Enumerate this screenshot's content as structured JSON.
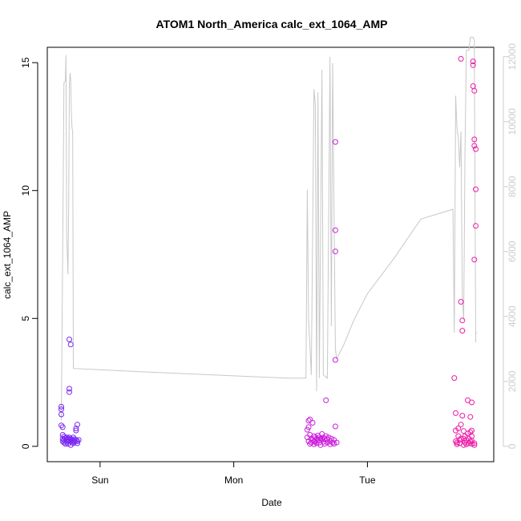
{
  "chart_data": {
    "type": "scatter",
    "title": "ATOM1 North_America calc_ext_1064_AMP",
    "xlabel": "Date",
    "ylabel": "calc_ext_1064_AMP",
    "x_unit": "days",
    "x_ticks": [
      {
        "value": 1.0,
        "label": "Sun"
      },
      {
        "value": 2.0,
        "label": "Mon"
      },
      {
        "value": 3.0,
        "label": "Tue"
      }
    ],
    "xlim": [
      0.605,
      3.945
    ],
    "ylim": [
      -0.6,
      15.6
    ],
    "y_ticks": [
      0,
      5,
      10,
      15
    ],
    "y2lim": [
      -472,
      12290
    ],
    "y2_ticks": [
      0,
      2000,
      4000,
      6000,
      8000,
      10000,
      12000
    ],
    "y2_color": "#cccccc",
    "line_color": "#c8c8c8",
    "series": [
      {
        "kind": "points",
        "color": "#7a28f2",
        "points": [
          [
            0.71,
            1.55
          ],
          [
            0.71,
            1.45
          ],
          [
            0.71,
            1.25
          ],
          [
            0.71,
            0.82
          ],
          [
            0.72,
            0.75
          ],
          [
            0.72,
            0.45
          ],
          [
            0.72,
            0.3
          ],
          [
            0.72,
            0.2
          ],
          [
            0.73,
            0.38
          ],
          [
            0.73,
            0.25
          ],
          [
            0.73,
            0.15
          ],
          [
            0.74,
            0.32
          ],
          [
            0.74,
            0.1
          ],
          [
            0.75,
            0.35
          ],
          [
            0.75,
            0.28
          ],
          [
            0.75,
            0.18
          ],
          [
            0.76,
            0.3
          ],
          [
            0.76,
            0.22
          ],
          [
            0.76,
            0.1
          ],
          [
            0.77,
            0.25
          ],
          [
            0.77,
            0.35
          ],
          [
            0.77,
            4.18
          ],
          [
            0.78,
            3.98
          ],
          [
            0.77,
            2.25
          ],
          [
            0.77,
            2.12
          ],
          [
            0.78,
            0.3
          ],
          [
            0.78,
            0.2
          ],
          [
            0.78,
            0.05
          ],
          [
            0.79,
            0.25
          ],
          [
            0.79,
            0.15
          ],
          [
            0.8,
            0.35
          ],
          [
            0.8,
            0.22
          ],
          [
            0.8,
            0.12
          ],
          [
            0.81,
            0.28
          ],
          [
            0.81,
            0.18
          ],
          [
            0.82,
            0.25
          ],
          [
            0.82,
            0.62
          ],
          [
            0.82,
            0.7
          ],
          [
            0.83,
            0.85
          ],
          [
            0.83,
            0.2
          ],
          [
            0.83,
            0.12
          ],
          [
            0.84,
            0.25
          ]
        ]
      },
      {
        "kind": "points",
        "color": "#cc1fdc",
        "points": [
          [
            2.55,
            0.65
          ],
          [
            2.55,
            0.35
          ],
          [
            2.56,
            1.0
          ],
          [
            2.56,
            0.75
          ],
          [
            2.56,
            0.2
          ],
          [
            2.57,
            1.05
          ],
          [
            2.57,
            0.45
          ],
          [
            2.57,
            0.1
          ],
          [
            2.58,
            0.3
          ],
          [
            2.58,
            0.15
          ],
          [
            2.59,
            0.92
          ],
          [
            2.59,
            0.25
          ],
          [
            2.6,
            0.4
          ],
          [
            2.6,
            0.2
          ],
          [
            2.6,
            0.08
          ],
          [
            2.61,
            0.35
          ],
          [
            2.61,
            0.18
          ],
          [
            2.62,
            0.3
          ],
          [
            2.62,
            0.12
          ],
          [
            2.63,
            0.42
          ],
          [
            2.63,
            0.25
          ],
          [
            2.64,
            0.35
          ],
          [
            2.64,
            0.15
          ],
          [
            2.65,
            0.3
          ],
          [
            2.65,
            0.05
          ],
          [
            2.66,
            0.48
          ],
          [
            2.66,
            0.28
          ],
          [
            2.67,
            0.35
          ],
          [
            2.67,
            0.18
          ],
          [
            2.68,
            0.3
          ],
          [
            2.68,
            0.1
          ],
          [
            2.69,
            1.8
          ],
          [
            2.69,
            0.4
          ],
          [
            2.7,
            0.28
          ],
          [
            2.7,
            0.15
          ],
          [
            2.71,
            0.35
          ],
          [
            2.72,
            0.2
          ],
          [
            2.72,
            0.08
          ],
          [
            2.73,
            0.3
          ],
          [
            2.74,
            0.15
          ],
          [
            2.75,
            0.25
          ],
          [
            2.75,
            0.1
          ],
          [
            2.76,
            11.9
          ],
          [
            2.76,
            8.45
          ],
          [
            2.76,
            7.62
          ],
          [
            2.76,
            3.38
          ],
          [
            2.76,
            0.78
          ],
          [
            2.77,
            0.15
          ]
        ]
      },
      {
        "kind": "points",
        "color": "#ee1aa6",
        "points": [
          [
            3.65,
            2.67
          ],
          [
            3.66,
            1.3
          ],
          [
            3.66,
            0.62
          ],
          [
            3.66,
            0.2
          ],
          [
            3.67,
            0.15
          ],
          [
            3.67,
            0.08
          ],
          [
            3.68,
            0.7
          ],
          [
            3.68,
            0.4
          ],
          [
            3.69,
            0.25
          ],
          [
            3.69,
            0.12
          ],
          [
            3.7,
            15.15
          ],
          [
            3.7,
            5.65
          ],
          [
            3.7,
            0.85
          ],
          [
            3.7,
            0.3
          ],
          [
            3.71,
            4.92
          ],
          [
            3.71,
            4.52
          ],
          [
            3.71,
            1.2
          ],
          [
            3.72,
            0.6
          ],
          [
            3.72,
            0.3
          ],
          [
            3.72,
            0.05
          ],
          [
            3.73,
            0.4
          ],
          [
            3.73,
            0.15
          ],
          [
            3.74,
            0.25
          ],
          [
            3.74,
            0.08
          ],
          [
            3.75,
            1.8
          ],
          [
            3.75,
            0.5
          ],
          [
            3.76,
            0.3
          ],
          [
            3.76,
            0.12
          ],
          [
            3.77,
            1.15
          ],
          [
            3.77,
            0.55
          ],
          [
            3.77,
            0.2
          ],
          [
            3.78,
            1.72
          ],
          [
            3.78,
            0.62
          ],
          [
            3.78,
            0.1
          ],
          [
            3.78,
            0.4
          ],
          [
            3.78,
            0.22
          ],
          [
            3.79,
            15.05
          ],
          [
            3.79,
            14.9
          ],
          [
            3.79,
            14.08
          ],
          [
            3.8,
            13.9
          ],
          [
            3.8,
            12.0
          ],
          [
            3.8,
            11.75
          ],
          [
            3.81,
            11.62
          ],
          [
            3.81,
            10.05
          ],
          [
            3.81,
            8.62
          ],
          [
            3.8,
            7.3
          ],
          [
            3.8,
            0.12
          ],
          [
            3.8,
            0.05
          ]
        ]
      },
      {
        "kind": "line",
        "axis": "right",
        "color": "#c8c8c8",
        "points": [
          [
            0.71,
            800
          ],
          [
            0.72,
            6000
          ],
          [
            0.73,
            11200
          ],
          [
            0.74,
            11250
          ],
          [
            0.745,
            12050
          ],
          [
            0.75,
            6500
          ],
          [
            0.76,
            5300
          ],
          [
            0.765,
            7500
          ],
          [
            0.77,
            11100
          ],
          [
            0.775,
            11500
          ],
          [
            0.78,
            11300
          ],
          [
            0.785,
            10300
          ],
          [
            0.79,
            9800
          ],
          [
            0.795,
            9700
          ],
          [
            0.8,
            2400
          ],
          [
            1.3,
            2300
          ],
          [
            2.4,
            2100
          ],
          [
            2.54,
            2100
          ],
          [
            2.55,
            7900
          ],
          [
            2.56,
            3900
          ],
          [
            2.58,
            2200
          ],
          [
            2.6,
            11000
          ],
          [
            2.61,
            10500
          ],
          [
            2.62,
            1700
          ],
          [
            2.63,
            10900
          ],
          [
            2.64,
            2100
          ],
          [
            2.66,
            11600
          ],
          [
            2.67,
            2200
          ],
          [
            2.7,
            2100
          ],
          [
            2.72,
            12000
          ],
          [
            2.73,
            3700
          ],
          [
            2.74,
            11800
          ],
          [
            2.76,
            3000
          ],
          [
            2.77,
            2700
          ],
          [
            2.82,
            3100
          ],
          [
            2.9,
            3900
          ],
          [
            3.0,
            4700
          ],
          [
            3.2,
            5800
          ],
          [
            3.4,
            7000
          ],
          [
            3.64,
            7300
          ],
          [
            3.65,
            3500
          ],
          [
            3.66,
            10800
          ],
          [
            3.67,
            9800
          ],
          [
            3.68,
            9500
          ],
          [
            3.69,
            8600
          ],
          [
            3.7,
            9700
          ],
          [
            3.71,
            4600
          ],
          [
            3.72,
            3900
          ],
          [
            3.73,
            9000
          ],
          [
            3.74,
            12200
          ],
          [
            3.76,
            12200
          ],
          [
            3.77,
            12600
          ],
          [
            3.79,
            12600
          ],
          [
            3.8,
            12500
          ],
          [
            3.8,
            12000
          ],
          [
            3.81,
            3200
          ],
          [
            3.81,
            3500
          ],
          [
            3.82,
            3500
          ]
        ]
      }
    ]
  }
}
